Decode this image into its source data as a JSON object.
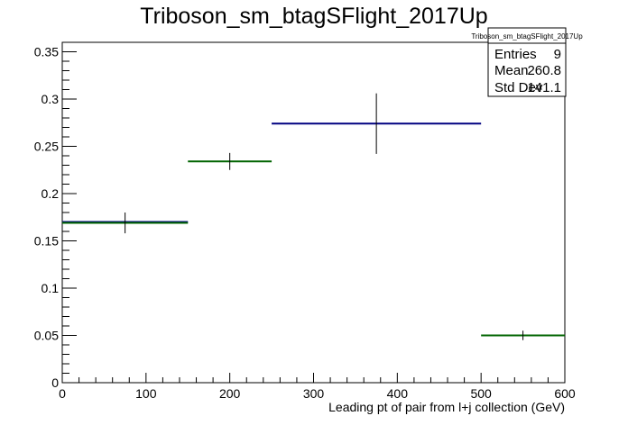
{
  "chart_data": {
    "type": "histogram",
    "title": "Triboson_sm_btagSFlight_2017Up",
    "xlabel": "Leading pt of pair from l+j collection (GeV)",
    "ylabel": "",
    "xlim": [
      0,
      600
    ],
    "ylim": [
      0,
      0.36
    ],
    "x_ticks": [
      0,
      100,
      200,
      300,
      400,
      500,
      600
    ],
    "y_ticks": [
      0,
      0.05,
      0.1,
      0.15,
      0.2,
      0.25,
      0.3,
      0.35
    ],
    "bins": [
      {
        "x_low": 0,
        "x_high": 150,
        "x_center": 75,
        "value": 0.169,
        "error": 0.011,
        "color": "#006400"
      },
      {
        "x_low": 150,
        "x_high": 250,
        "x_center": 200,
        "value": 0.234,
        "error": 0.009,
        "color": "#006400"
      },
      {
        "x_low": 250,
        "x_high": 500,
        "x_center": 375,
        "value": 0.274,
        "error": 0.032,
        "color": "#000080"
      },
      {
        "x_low": 500,
        "x_high": 600,
        "x_center": 550,
        "value": 0.05,
        "error": 0.005,
        "color": "#006400"
      }
    ],
    "overlay": [
      {
        "x_low": 0,
        "x_high": 150,
        "value": 0.17,
        "color": "#000080"
      }
    ],
    "stats_box": {
      "title": "Triboson_sm_btagSFlight_2017Up",
      "rows": [
        {
          "label": "Entries",
          "value": "9"
        },
        {
          "label": "Mean",
          "value": "260.8"
        },
        {
          "label": "Std Dev",
          "value": "141.1"
        }
      ]
    },
    "grid": false,
    "legend": "stats box top-right"
  }
}
